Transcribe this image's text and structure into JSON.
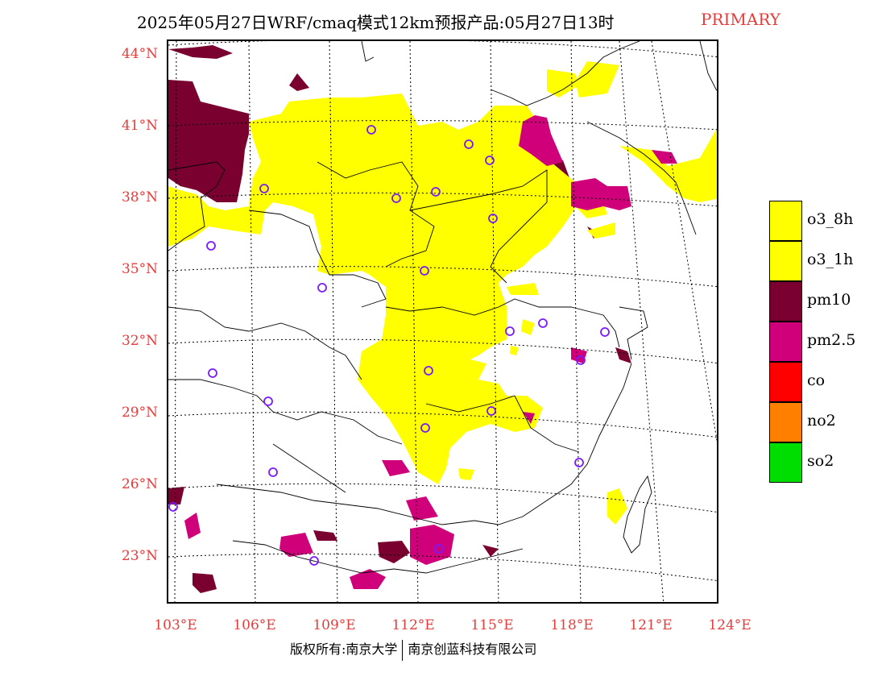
{
  "header": {
    "title": "2025年05月27日WRF/cmaq模式12km预报产品:05月27日13时",
    "tag": "PRIMARY"
  },
  "axes": {
    "lat_labels": [
      "44°N",
      "41°N",
      "38°N",
      "35°N",
      "32°N",
      "29°N",
      "26°N",
      "23°N"
    ],
    "lon_labels": [
      "103°E",
      "106°E",
      "109°E",
      "112°E",
      "115°E",
      "118°E",
      "121°E",
      "124°E"
    ]
  },
  "legend": {
    "items": [
      {
        "label": "o3_8h",
        "color": "#ffff00"
      },
      {
        "label": "o3_1h",
        "color": "#ffff00"
      },
      {
        "label": "pm10",
        "color": "#7a0030"
      },
      {
        "label": "pm2.5",
        "color": "#d0007a"
      },
      {
        "label": "co",
        "color": "#ff0000"
      },
      {
        "label": "no2",
        "color": "#ff8000"
      },
      {
        "label": "so2",
        "color": "#00dd00"
      }
    ]
  },
  "footer": {
    "left": "版权所有:南京大学",
    "right": "南京创蓝科技有限公司"
  },
  "colors": {
    "grid_line": "#000000",
    "station_marker": "#7a1aff",
    "label_red": "#e63c3c"
  }
}
